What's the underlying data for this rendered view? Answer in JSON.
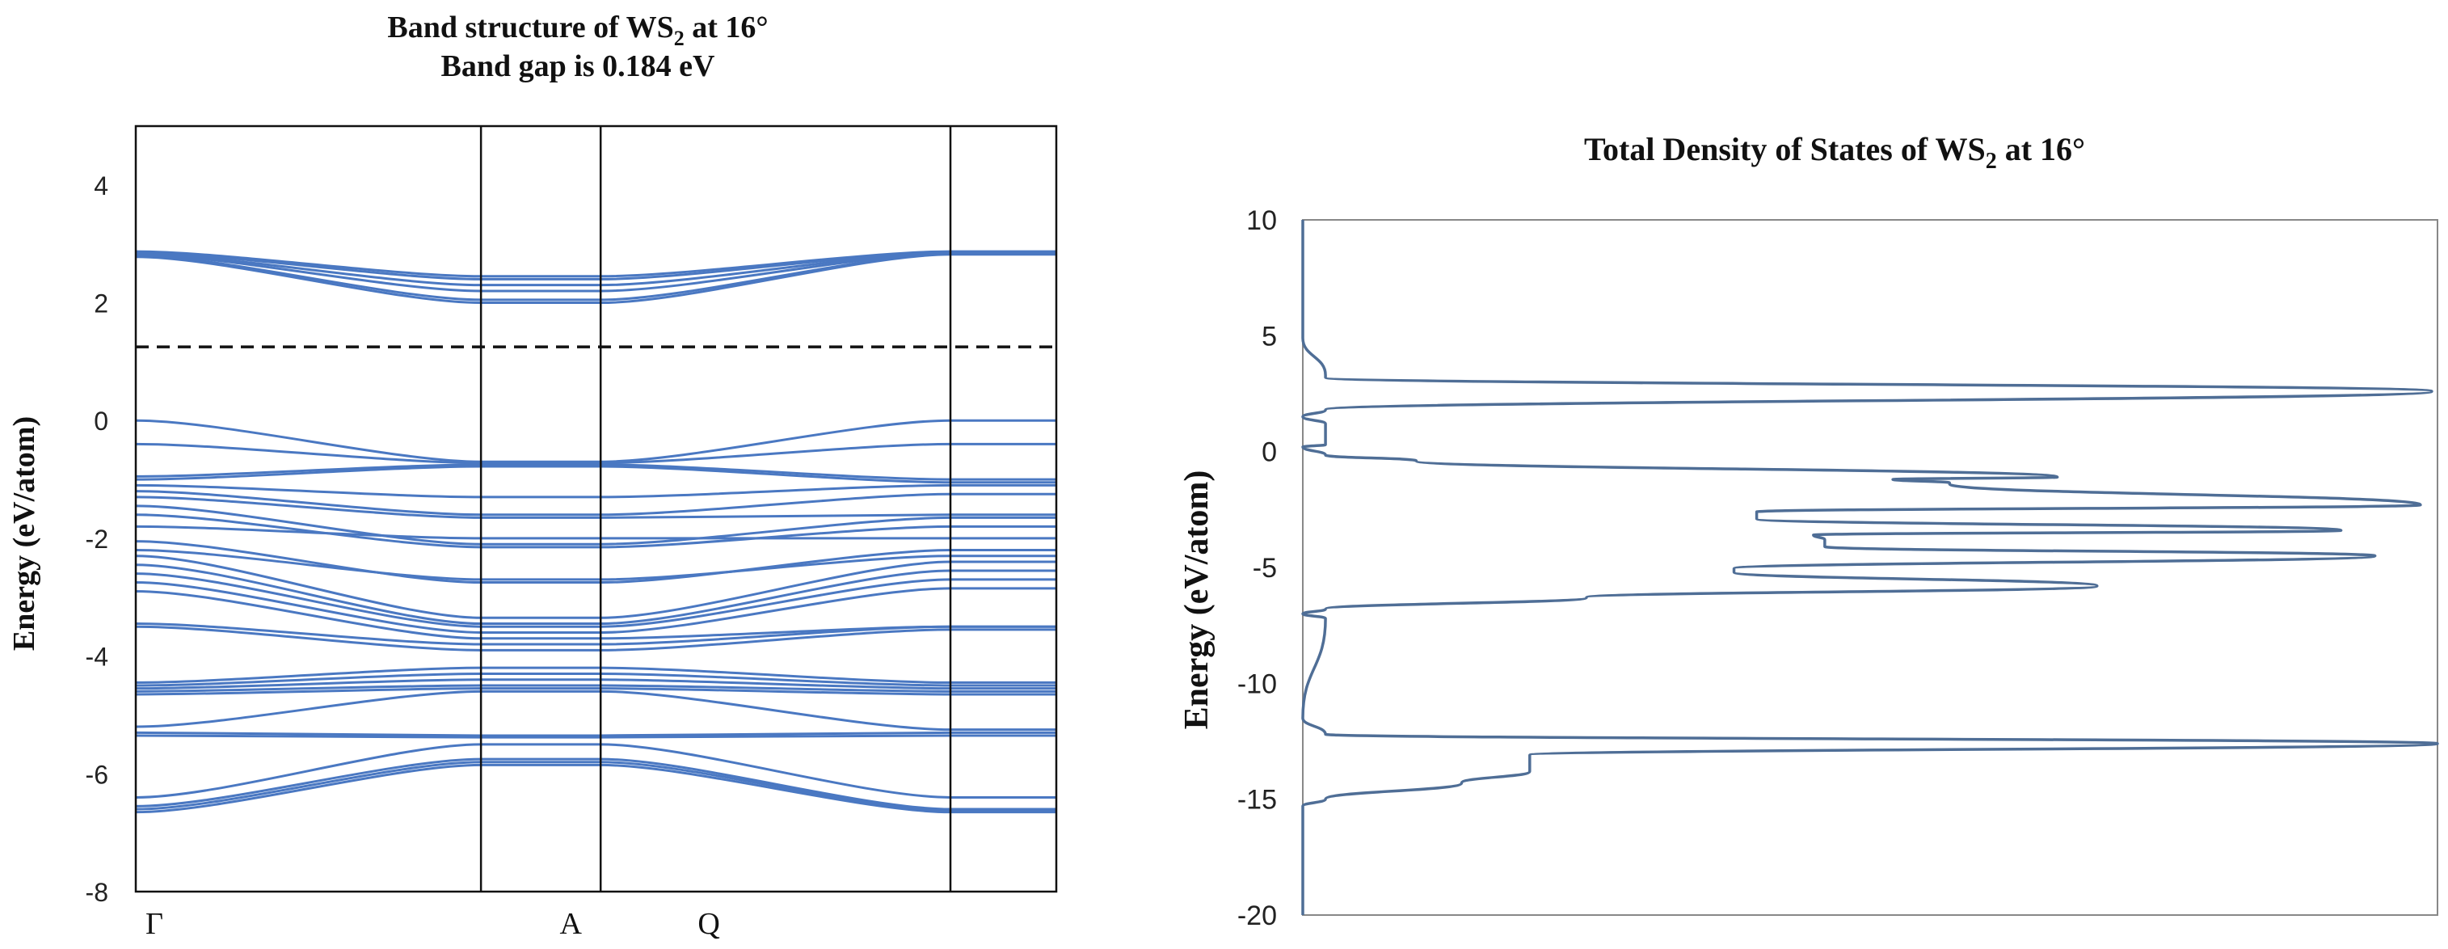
{
  "chart_data": [
    {
      "type": "line",
      "title_line1": "Band structure of WS",
      "title_sub": "2",
      "title_line1_suffix": " at 16°",
      "title_line2": "Band gap is 0.184 eV",
      "ylabel": "Energy (eV/atom)",
      "ylim": [
        -8,
        5
      ],
      "yticks": [
        4,
        2,
        0,
        -2,
        -4,
        -6,
        -8
      ],
      "xlim": [
        0,
        1
      ],
      "kpoint_lines": [
        0.375,
        0.505,
        0.885
      ],
      "kpoint_labels": [
        {
          "label": "Γ",
          "x": 0.0
        },
        {
          "label": "A",
          "x": 0.45
        },
        {
          "label": "Q",
          "x": 0.6
        }
      ],
      "fermi_level": 1.25,
      "band_color": "#4a78c2",
      "fermi_color": "#111111",
      "bands": [
        {
          "gamma": 2.87,
          "mid": 2.45,
          "end": 2.87
        },
        {
          "gamma": 2.85,
          "mid": 2.4,
          "end": 2.86
        },
        {
          "gamma": 2.83,
          "mid": 2.3,
          "end": 2.85
        },
        {
          "gamma": 2.82,
          "mid": 2.2,
          "end": 2.84
        },
        {
          "gamma": 2.8,
          "mid": 2.05,
          "end": 2.83
        },
        {
          "gamma": 2.78,
          "mid": 2.0,
          "end": 2.82
        },
        {
          "gamma": 0.0,
          "mid": -0.7,
          "end": 0.0
        },
        {
          "gamma": -0.4,
          "mid": -0.72,
          "end": -0.4
        },
        {
          "gamma": -0.95,
          "mid": -0.75,
          "end": -1.0
        },
        {
          "gamma": -1.0,
          "mid": -0.78,
          "end": -1.05
        },
        {
          "gamma": -1.1,
          "mid": -1.3,
          "end": -1.1
        },
        {
          "gamma": -1.2,
          "mid": -1.6,
          "end": -1.25
        },
        {
          "gamma": -1.3,
          "mid": -1.65,
          "end": -1.6
        },
        {
          "gamma": -1.45,
          "mid": -2.1,
          "end": -1.65
        },
        {
          "gamma": -1.6,
          "mid": -2.15,
          "end": -1.8
        },
        {
          "gamma": -1.8,
          "mid": -2.0,
          "end": -2.0
        },
        {
          "gamma": -2.05,
          "mid": -2.75,
          "end": -2.2
        },
        {
          "gamma": -2.2,
          "mid": -2.7,
          "end": -2.3
        },
        {
          "gamma": -2.3,
          "mid": -3.35,
          "end": -2.4
        },
        {
          "gamma": -2.45,
          "mid": -3.45,
          "end": -2.55
        },
        {
          "gamma": -2.6,
          "mid": -3.5,
          "end": -2.7
        },
        {
          "gamma": -2.75,
          "mid": -3.6,
          "end": -2.85
        },
        {
          "gamma": -2.9,
          "mid": -3.7,
          "end": -3.5
        },
        {
          "gamma": -3.45,
          "mid": -3.8,
          "end": -3.5
        },
        {
          "gamma": -3.5,
          "mid": -3.9,
          "end": -3.55
        },
        {
          "gamma": -4.45,
          "mid": -4.2,
          "end": -4.45
        },
        {
          "gamma": -4.5,
          "mid": -4.3,
          "end": -4.5
        },
        {
          "gamma": -4.55,
          "mid": -4.4,
          "end": -4.55
        },
        {
          "gamma": -4.6,
          "mid": -4.5,
          "end": -4.6
        },
        {
          "gamma": -4.65,
          "mid": -4.55,
          "end": -4.65
        },
        {
          "gamma": -5.2,
          "mid": -4.6,
          "end": -5.25
        },
        {
          "gamma": -5.3,
          "mid": -5.35,
          "end": -5.3
        },
        {
          "gamma": -5.35,
          "mid": -5.38,
          "end": -5.35
        },
        {
          "gamma": -6.4,
          "mid": -5.5,
          "end": -6.4
        },
        {
          "gamma": -6.55,
          "mid": -5.75,
          "end": -6.6
        },
        {
          "gamma": -6.6,
          "mid": -5.8,
          "end": -6.62
        },
        {
          "gamma": -6.65,
          "mid": -5.85,
          "end": -6.65
        }
      ]
    },
    {
      "type": "line",
      "title": "Total Density  of States of WS",
      "title_sub": "2",
      "title_suffix": " at 16°",
      "ylabel": "Energy (eV/atom)",
      "ylim": [
        -20,
        10
      ],
      "yticks": [
        10,
        5,
        0,
        -5,
        -10,
        -15,
        -20
      ],
      "xlim": [
        0,
        1
      ],
      "line_color": "#4f6e96",
      "series": [
        {
          "name": "Total DOS",
          "energy": [
            10,
            4.9,
            3.3,
            3.2,
            2.6,
            1.8,
            1.5,
            1.2,
            0.3,
            0.2,
            -0.15,
            -0.4,
            -1.1,
            -1.2,
            -1.35,
            -1.4,
            -2.3,
            -2.6,
            -2.9,
            -3.4,
            -3.6,
            -3.8,
            -4.1,
            -4.5,
            -5.05,
            -5.2,
            -5.8,
            -6.3,
            -6.8,
            -7.0,
            -7.2,
            -11.5,
            -12.2,
            -12.6,
            -13.1,
            -13.8,
            -14.3,
            -15.0,
            -15.3,
            -20
          ],
          "dos": [
            0,
            0,
            0.02,
            0.02,
            0.995,
            0.02,
            0.0,
            0.02,
            0.02,
            0.0,
            0.02,
            0.1,
            0.665,
            0.52,
            0.57,
            0.57,
            0.985,
            0.4,
            0.4,
            0.915,
            0.45,
            0.46,
            0.46,
            0.945,
            0.38,
            0.38,
            0.7,
            0.25,
            0.02,
            0.0,
            0.02,
            0.0,
            0.02,
            1.0,
            0.2,
            0.2,
            0.14,
            0.02,
            0.0,
            0.0
          ]
        }
      ]
    }
  ]
}
